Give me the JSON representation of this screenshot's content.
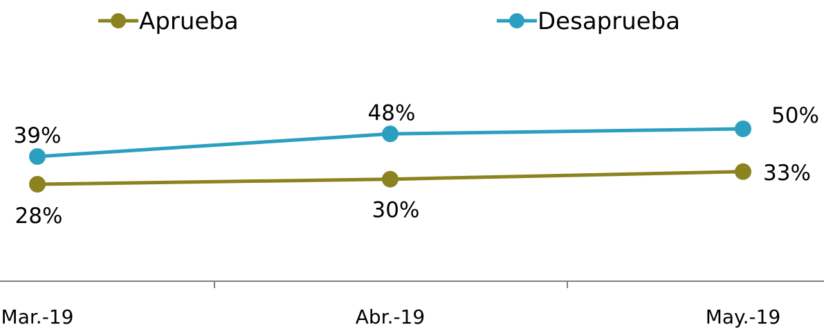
{
  "chart_data": {
    "type": "line",
    "categories": [
      "Mar.-19",
      "Abr.-19",
      "May.-19"
    ],
    "series": [
      {
        "name": "Aprueba",
        "color": "#8b8320",
        "values": [
          28,
          30,
          33
        ],
        "labels": [
          "28%",
          "30%",
          "33%"
        ]
      },
      {
        "name": "Desaprueba",
        "color": "#2b9fc0",
        "values": [
          39,
          48,
          50
        ],
        "labels": [
          "39%",
          "48%",
          "50%"
        ]
      }
    ],
    "value_format": "percent",
    "legend_position": "top",
    "grid": false,
    "axis_color": "#7f7f7f"
  }
}
